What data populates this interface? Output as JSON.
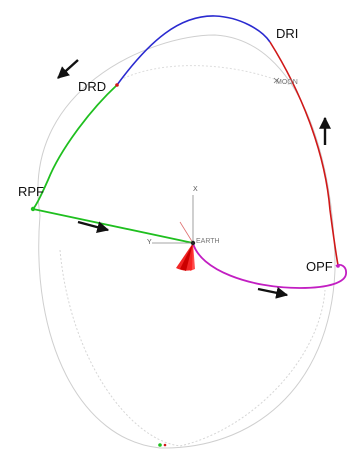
{
  "labels": {
    "dri": "DRI",
    "drd": "DRD",
    "rpf": "RPF",
    "opf": "OPF",
    "moon": "MOON",
    "earth": "EARTH"
  },
  "axes": {
    "x": "X",
    "y": "Y"
  },
  "colors": {
    "outbound_arc": "#d01818",
    "departure_arc": "#2a2ad0",
    "return_arc": "#1fbf1f",
    "transfer_arc": "#c21ec2",
    "orbit_guides": "#c8c8c8",
    "earth_cone": "#ee0000",
    "arrows": "#111111"
  }
}
